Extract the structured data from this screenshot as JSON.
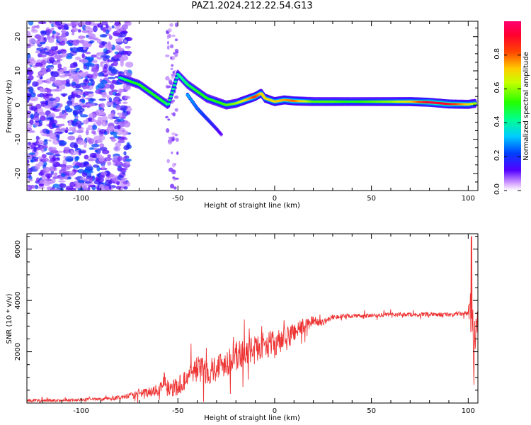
{
  "title": "PAZ1.2024.212.22.54.G13",
  "chart_data": [
    {
      "type": "heatmap",
      "xlabel": "Height of straight line (km)",
      "ylabel": "Frequency (Hz)",
      "xlim": [
        -128,
        105
      ],
      "ylim": [
        -25,
        24.5
      ],
      "x_ticks": [
        -100,
        -50,
        0,
        50,
        100
      ],
      "y_ticks": [
        -20,
        -10,
        0,
        10,
        20
      ],
      "colorbar": {
        "label": "Normalized spectral amplitude",
        "range": [
          0,
          1
        ],
        "ticks": [
          0.0,
          0.2,
          0.4,
          0.6,
          0.8
        ],
        "colormap": "gist_rainbow_r (white at 0)"
      },
      "ridge": {
        "name": "dominant Doppler line",
        "x": [
          -80,
          -75,
          -70,
          -65,
          -60,
          -55,
          -50,
          -45,
          -40,
          -35,
          -30,
          -25,
          -20,
          -15,
          -10,
          -7,
          -5,
          0,
          5,
          10,
          20,
          30,
          40,
          50,
          60,
          70,
          80,
          90,
          100,
          104
        ],
        "y": [
          8,
          7,
          6,
          4,
          2,
          0,
          9,
          6,
          4,
          2,
          1,
          0,
          0.5,
          1.5,
          2.5,
          3.5,
          2,
          1,
          1.5,
          1.2,
          1,
          1,
          1,
          1,
          1,
          1,
          0.8,
          0.3,
          0.2,
          0.5
        ],
        "amplitude": [
          0.4,
          0.5,
          0.5,
          0.5,
          0.5,
          0.45,
          0.4,
          0.45,
          0.5,
          0.5,
          0.5,
          0.55,
          0.6,
          0.7,
          0.85,
          0.7,
          0.7,
          0.7,
          0.75,
          0.8,
          0.55,
          0.55,
          0.5,
          0.55,
          0.6,
          0.7,
          0.95,
          0.9,
          0.7,
          0.6
        ]
      },
      "secondary_branch": {
        "x": [
          -45,
          -40,
          -35,
          -30,
          -27
        ],
        "y": [
          3,
          -1,
          -4,
          -7,
          -9
        ],
        "amplitude": [
          0.3,
          0.25,
          0.2,
          0.15,
          0.1
        ]
      },
      "noise_region": {
        "x_range": [
          -128,
          -75
        ],
        "y_range": [
          -25,
          24.5
        ],
        "amplitude": [
          0.05,
          0.25
        ]
      }
    },
    {
      "type": "line",
      "xlabel": "Height of straight line (km)",
      "ylabel": "SNR (10 * v/v)",
      "xlim": [
        -128,
        105
      ],
      "ylim": [
        0,
        6600
      ],
      "x_ticks": [
        -100,
        -50,
        0,
        50,
        100
      ],
      "y_ticks": [
        2000,
        4000,
        6000
      ],
      "series": [
        {
          "color": "#ee3333",
          "x": [
            -128,
            -110,
            -90,
            -80,
            -70,
            -60,
            -57,
            -55,
            -50,
            -45,
            -40,
            -35,
            -30,
            -25,
            -20,
            -15,
            -10,
            -5,
            0,
            5,
            10,
            15,
            20,
            25,
            30,
            40,
            50,
            60,
            70,
            80,
            90,
            100,
            102,
            103,
            104
          ],
          "y": [
            100,
            100,
            150,
            200,
            350,
            500,
            950,
            600,
            600,
            1050,
            1350,
            1250,
            1400,
            1600,
            1800,
            2000,
            2100,
            2300,
            2300,
            2400,
            2800,
            3000,
            3200,
            3150,
            3350,
            3400,
            3400,
            3450,
            3450,
            3450,
            3450,
            3500,
            3900,
            1500,
            3500
          ],
          "noise_amp": [
            60,
            50,
            60,
            80,
            150,
            250,
            300,
            300,
            400,
            450,
            500,
            550,
            550,
            550,
            600,
            550,
            500,
            500,
            550,
            500,
            450,
            300,
            200,
            120,
            100,
            90,
            80,
            80,
            80,
            80,
            80,
            100,
            1500,
            1500,
            800
          ]
        }
      ]
    }
  ]
}
